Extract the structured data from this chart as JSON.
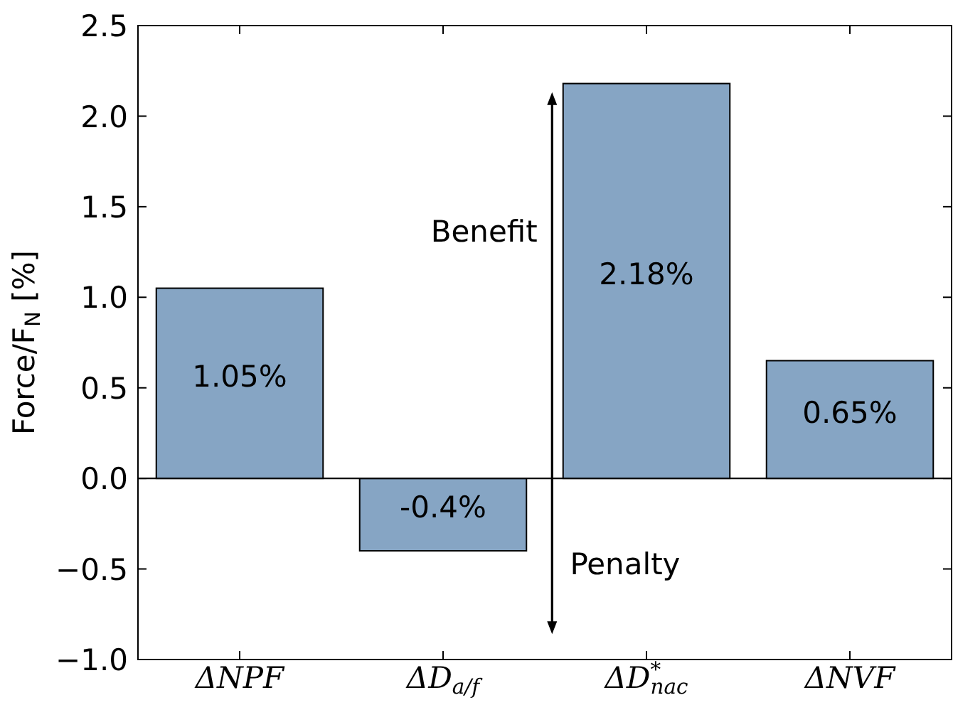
{
  "chart_data": {
    "type": "bar",
    "ylabel": "Force/F$_{N}$ [%]",
    "categories": [
      "ΔNPF",
      "ΔD$_{a/f}$",
      "ΔD$^{*}$$_{nac}$",
      "ΔNVF"
    ],
    "values": [
      1.05,
      -0.4,
      2.18,
      0.65
    ],
    "value_labels": [
      "1.05%",
      "-0.4%",
      "2.18%",
      "0.65%"
    ],
    "color": "#86a5c4",
    "ylim": [
      -1,
      2.5
    ],
    "yticks": [
      {
        "value": -1,
        "label": "−1.0"
      },
      {
        "value": -0.5,
        "label": "−0.5"
      },
      {
        "value": 0,
        "label": "0.0"
      },
      {
        "value": 0.5,
        "label": "0.5"
      },
      {
        "value": 1,
        "label": "1.0"
      },
      {
        "value": 1.5,
        "label": "1.5"
      },
      {
        "value": 2,
        "label": "2.0"
      },
      {
        "value": 2.5,
        "label": "2.5"
      }
    ],
    "ref_lines": [
      {
        "axis": "y",
        "value": 0,
        "color": "#000000"
      }
    ],
    "annotations": [
      "Benefit",
      "Penalty"
    ]
  }
}
